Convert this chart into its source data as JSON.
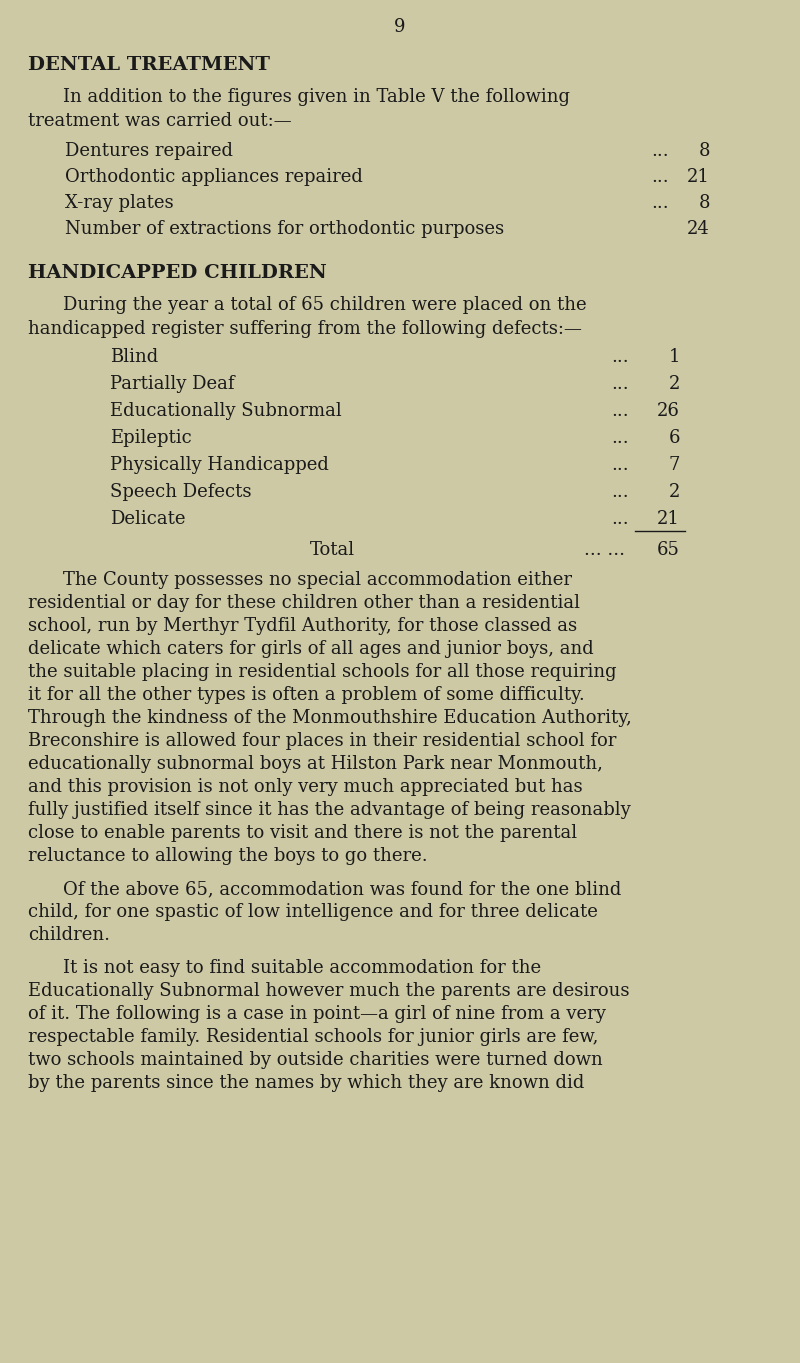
{
  "bg_color": "#cdc9a5",
  "text_color": "#1a1a1a",
  "page_number": "9",
  "section1_title": "DENTAL TREATMENT",
  "section1_intro_line1": "In addition to the figures given in Table V the following",
  "section1_intro_line2": "treatment was carried out:—",
  "section1_items": [
    [
      "Dentures repaired",
      "...",
      "8"
    ],
    [
      "Orthodontic appliances repaired",
      "...",
      "21"
    ],
    [
      "X-ray plates",
      "...",
      "8"
    ],
    [
      "Number of extractions for orthodontic purposes",
      "",
      "24"
    ]
  ],
  "section2_title": "HANDICAPPED CHILDREN",
  "section2_intro_line1": "During the year a total of 65 children were placed on the",
  "section2_intro_line2": "handicapped register suffering from the following defects:—",
  "section2_items": [
    [
      "Blind",
      "...",
      "1"
    ],
    [
      "Partially Deaf",
      "...",
      "2"
    ],
    [
      "Educationally Subnormal",
      "...",
      "26"
    ],
    [
      "Epileptic",
      "...",
      "6"
    ],
    [
      "Physically Handicapped",
      "...",
      "7"
    ],
    [
      "Speech Defects",
      "...",
      "2"
    ],
    [
      "Delicate",
      "...",
      "21"
    ]
  ],
  "section2_total_label": "Total",
  "section2_total_dots": "... ...",
  "section2_total": "65",
  "para1_lines": [
    "The County possesses no special accommodation either",
    "residential or day for these children other than a residential",
    "school, run by Merthyr Tydfil Authority, for those classed as",
    "delicate which caters for girls of all ages and junior boys, and",
    "the suitable placing in residential schools for all those requiring",
    "it for all the other types is often a problem of some difficulty.",
    "Through the kindness of the Monmouthshire Education Authority,",
    "Breconshire is allowed four places in their residential school for",
    "educationally subnormal boys at Hilston Park near Monmouth,",
    "and this provision is not only very much appreciated but has",
    "fully justified itself since it has the advantage of being reasonably",
    "close to enable parents to visit and there is not the parental",
    "reluctance to allowing the boys to go there."
  ],
  "para2_lines": [
    "Of the above 65, accommodation was found for the one blind",
    "child, for one spastic of low intelligence and for three delicate",
    "children."
  ],
  "para3_lines": [
    "It is not easy to find suitable accommodation for the",
    "Educationally Subnormal however much the parents are desirous",
    "of it. The following is a case in point—a girl of nine from a very",
    "respectable family. Residential schools for junior girls are few,",
    "two schools maintained by outside charities were turned down",
    "by the parents since the names by which they are known did"
  ],
  "title_fontsize": 14,
  "heading_fontsize": 14,
  "body_fontsize": 13.0,
  "item_fontsize": 13.0,
  "page_num_fontsize": 13
}
